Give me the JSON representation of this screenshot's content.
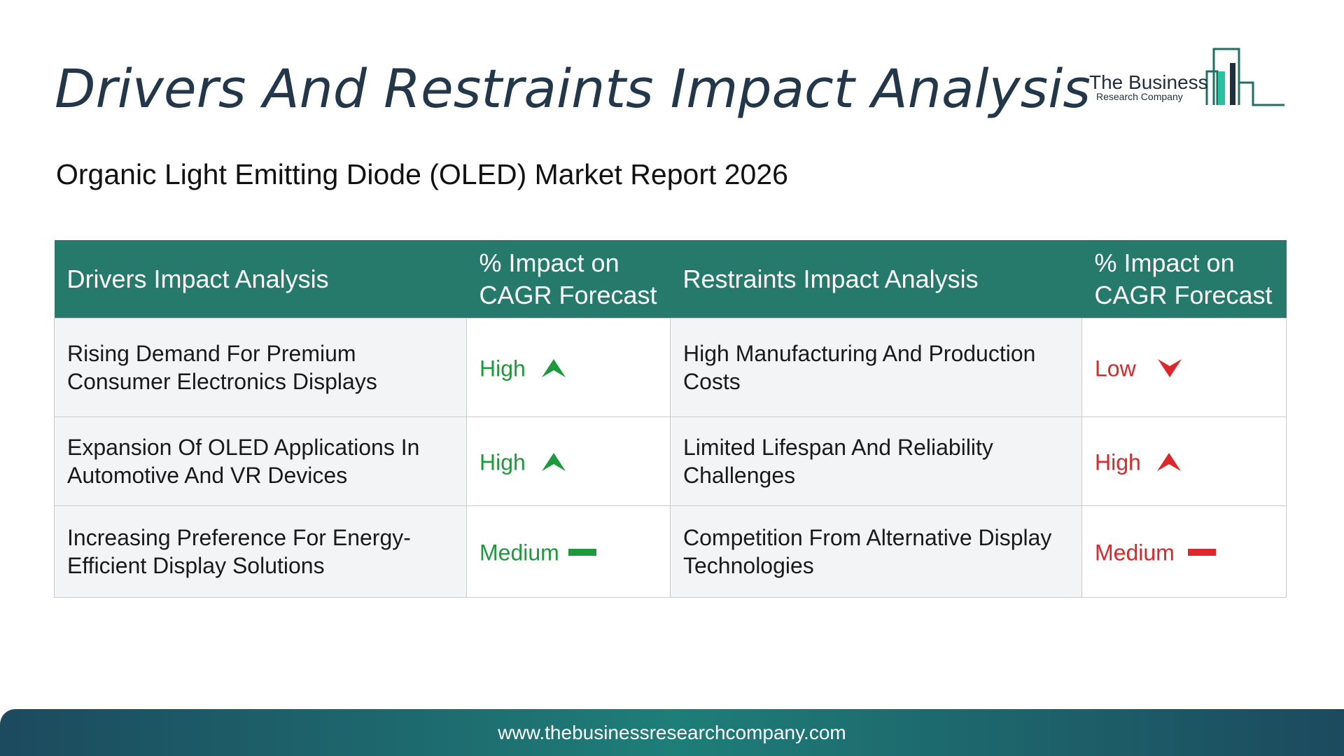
{
  "header": {
    "title": "Drivers And Restraints Impact Analysis",
    "subtitle": "Organic Light Emitting Diode (OLED) Market Report 2026"
  },
  "logo": {
    "line1": "The Business",
    "line2": "Research Company"
  },
  "table": {
    "columns": [
      "Drivers Impact Analysis",
      "% Impact on CAGR Forecast",
      "Restraints Impact Analysis",
      "% Impact on CAGR Forecast"
    ],
    "rows": [
      {
        "driver": "Rising Demand For Premium Consumer Electronics Displays",
        "driver_impact": "High",
        "driver_trend": "up-arrow-icon",
        "restraint": "High Manufacturing And Production Costs",
        "restraint_impact": "Low",
        "restraint_trend": "down-arrow-icon"
      },
      {
        "driver": "Expansion Of OLED Applications In Automotive And VR Devices",
        "driver_impact": "High",
        "driver_trend": "up-arrow-icon",
        "restraint": "Limited Lifespan And Reliability Challenges",
        "restraint_impact": "High",
        "restraint_trend": "up-arrow-icon"
      },
      {
        "driver": "Increasing Preference For Energy-Efficient Display Solutions",
        "driver_impact": "Medium",
        "driver_trend": "dash-icon",
        "restraint": "Competition From Alternative Display Technologies",
        "restraint_impact": "Medium",
        "restraint_trend": "dash-icon"
      }
    ]
  },
  "colors": {
    "header_bg": "#267a6b",
    "driver_impact": "#1c9a3c",
    "restraint_impact": "#e0262a",
    "title": "#22384a"
  },
  "footer": {
    "url": "www.thebusinessresearchcompany.com"
  }
}
